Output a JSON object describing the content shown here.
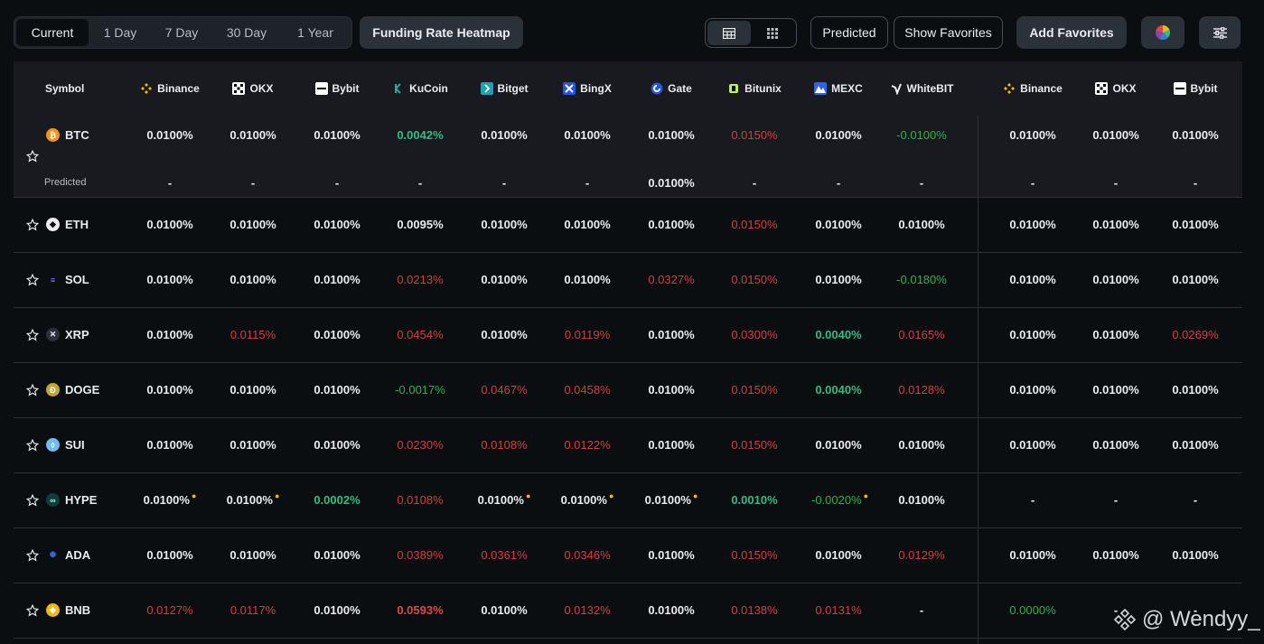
{
  "toolbar": {
    "periods": [
      "Current",
      "1 Day",
      "7 Day",
      "30 Day",
      "1 Year"
    ],
    "active_period": "Current",
    "heatmap_label": "Funding Rate Heatmap",
    "predicted_label": "Predicted",
    "show_favorites_label": "Show Favorites",
    "add_favorites_label": "Add Favorites"
  },
  "table": {
    "symbol_header": "Symbol",
    "exchanges": [
      "Binance",
      "OKX",
      "Bybit",
      "KuCoin",
      "Bitget",
      "BingX",
      "Gate",
      "Bitunix",
      "MEXC",
      "WhiteBIT",
      "Binance",
      "OKX",
      "Bybit"
    ],
    "predicted_row_label": "Predicted",
    "rows": [
      {
        "symbol": "BTC",
        "rates": [
          "0.0100%",
          "0.0100%",
          "0.0100%",
          "0.0042%",
          "0.0100%",
          "0.0100%",
          "0.0100%",
          "0.0150%",
          "0.0100%",
          "-0.0100%",
          "0.0100%",
          "0.0100%",
          "0.0100%"
        ],
        "predicted": [
          "-",
          "-",
          "-",
          "-",
          "-",
          "-",
          "0.0100%",
          "-",
          "-",
          "-",
          "-",
          "-",
          "-"
        ]
      },
      {
        "symbol": "ETH",
        "rates": [
          "0.0100%",
          "0.0100%",
          "0.0100%",
          "0.0095%",
          "0.0100%",
          "0.0100%",
          "0.0100%",
          "0.0150%",
          "0.0100%",
          "0.0100%",
          "0.0100%",
          "0.0100%",
          "0.0100%"
        ]
      },
      {
        "symbol": "SOL",
        "rates": [
          "0.0100%",
          "0.0100%",
          "0.0100%",
          "0.0213%",
          "0.0100%",
          "0.0100%",
          "0.0327%",
          "0.0150%",
          "0.0100%",
          "-0.0180%",
          "0.0100%",
          "0.0100%",
          "0.0100%"
        ]
      },
      {
        "symbol": "XRP",
        "rates": [
          "0.0100%",
          "0.0115%",
          "0.0100%",
          "0.0454%",
          "0.0100%",
          "0.0119%",
          "0.0100%",
          "0.0300%",
          "0.0040%",
          "0.0165%",
          "0.0100%",
          "0.0100%",
          "0.0269%"
        ]
      },
      {
        "symbol": "DOGE",
        "rates": [
          "0.0100%",
          "0.0100%",
          "0.0100%",
          "-0.0017%",
          "0.0467%",
          "0.0458%",
          "0.0100%",
          "0.0150%",
          "0.0040%",
          "0.0128%",
          "0.0100%",
          "0.0100%",
          "0.0100%"
        ]
      },
      {
        "symbol": "SUI",
        "rates": [
          "0.0100%",
          "0.0100%",
          "0.0100%",
          "0.0230%",
          "0.0108%",
          "0.0122%",
          "0.0100%",
          "0.0150%",
          "0.0100%",
          "0.0100%",
          "0.0100%",
          "0.0100%",
          "0.0100%"
        ]
      },
      {
        "symbol": "HYPE",
        "rates": [
          "0.0100%",
          "0.0100%",
          "0.0002%",
          "0.0108%",
          "0.0100%",
          "0.0100%",
          "0.0100%",
          "0.0010%",
          "-0.0020%",
          "0.0100%",
          "-",
          "-",
          "-"
        ]
      },
      {
        "symbol": "ADA",
        "rates": [
          "0.0100%",
          "0.0100%",
          "0.0100%",
          "0.0389%",
          "0.0361%",
          "0.0346%",
          "0.0100%",
          "0.0150%",
          "0.0100%",
          "0.0129%",
          "0.0100%",
          "0.0100%",
          "0.0100%"
        ]
      },
      {
        "symbol": "BNB",
        "rates": [
          "0.0127%",
          "0.0117%",
          "0.0100%",
          "0.0593%",
          "0.0100%",
          "0.0132%",
          "0.0100%",
          "0.0138%",
          "0.0131%",
          "-",
          "0.0000%",
          "-",
          "-"
        ]
      }
    ]
  },
  "colors": {
    "positive": "#2ebd85",
    "negative": "#d0403d",
    "neutral": "#eaecef",
    "accent": "#f0b90b"
  },
  "watermark": "@ Wendyy_"
}
